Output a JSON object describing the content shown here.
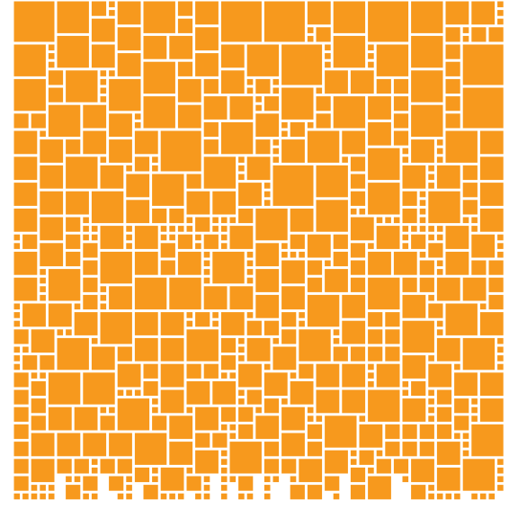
{
  "colors": {
    "background": "#ffffff",
    "tile": "#F7991D"
  },
  "mosaic": {
    "style": "orange square tiles of varying sizes packed with thin white gaps"
  }
}
